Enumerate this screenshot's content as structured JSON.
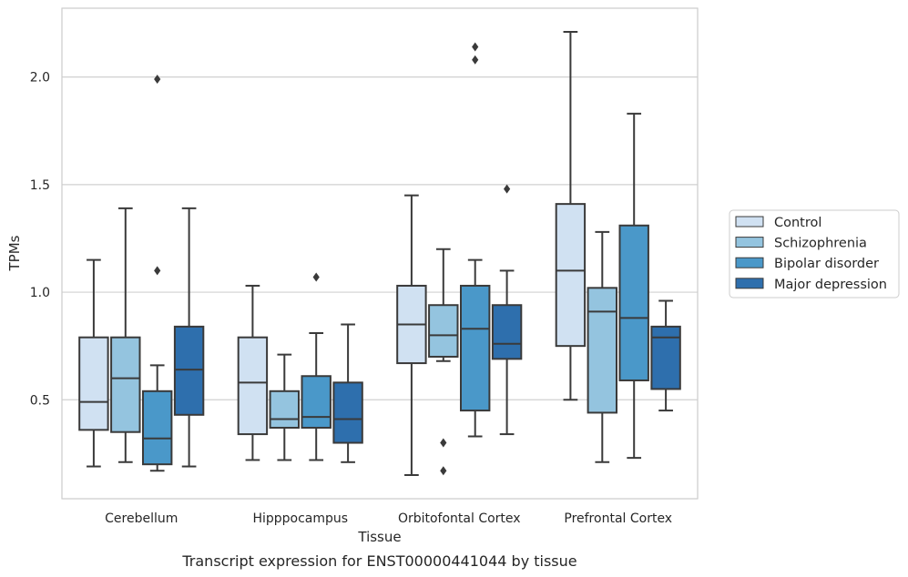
{
  "chart_data": {
    "type": "box",
    "caption": "Transcript expression for ENST00000441044 by tissue",
    "xlabel": "Tissue",
    "ylabel": "TPMs",
    "ylim": [
      0.04,
      2.32
    ],
    "yticks": [
      0.5,
      1.0,
      1.5,
      2.0
    ],
    "ytick_labels": [
      "0.5",
      "1.0",
      "1.5",
      "2.0"
    ],
    "grid": "horizontal",
    "legend_position": "right",
    "categories": [
      "Cerebellum",
      "Hipppocampus",
      "Orbitofontal Cortex",
      "Prefrontal Cortex"
    ],
    "series": [
      {
        "name": "Control",
        "color": "#d0e1f2",
        "boxes": [
          {
            "whislo": 0.19,
            "q1": 0.36,
            "med": 0.49,
            "q3": 0.79,
            "whishi": 1.15,
            "fliers": []
          },
          {
            "whislo": 0.22,
            "q1": 0.34,
            "med": 0.58,
            "q3": 0.79,
            "whishi": 1.03,
            "fliers": []
          },
          {
            "whislo": 0.15,
            "q1": 0.67,
            "med": 0.85,
            "q3": 1.03,
            "whishi": 1.45,
            "fliers": []
          },
          {
            "whislo": 0.5,
            "q1": 0.75,
            "med": 1.1,
            "q3": 1.41,
            "whishi": 2.21,
            "fliers": []
          }
        ]
      },
      {
        "name": "Schizophrenia",
        "color": "#94c4df",
        "boxes": [
          {
            "whislo": 0.21,
            "q1": 0.35,
            "med": 0.6,
            "q3": 0.79,
            "whishi": 1.39,
            "fliers": []
          },
          {
            "whislo": 0.22,
            "q1": 0.37,
            "med": 0.41,
            "q3": 0.54,
            "whishi": 0.71,
            "fliers": []
          },
          {
            "whislo": 0.68,
            "q1": 0.7,
            "med": 0.8,
            "q3": 0.94,
            "whishi": 1.2,
            "fliers": [
              0.3,
              0.17
            ]
          },
          {
            "whislo": 0.21,
            "q1": 0.44,
            "med": 0.91,
            "q3": 1.02,
            "whishi": 1.28,
            "fliers": []
          }
        ]
      },
      {
        "name": "Bipolar disorder",
        "color": "#4a98c9",
        "boxes": [
          {
            "whislo": 0.17,
            "q1": 0.2,
            "med": 0.32,
            "q3": 0.54,
            "whishi": 0.66,
            "fliers": [
              1.99,
              1.1
            ]
          },
          {
            "whislo": 0.22,
            "q1": 0.37,
            "med": 0.42,
            "q3": 0.61,
            "whishi": 0.81,
            "fliers": [
              1.07
            ]
          },
          {
            "whislo": 0.33,
            "q1": 0.45,
            "med": 0.83,
            "q3": 1.03,
            "whishi": 1.15,
            "fliers": [
              2.14,
              2.08
            ]
          },
          {
            "whislo": 0.23,
            "q1": 0.59,
            "med": 0.88,
            "q3": 1.31,
            "whishi": 1.83,
            "fliers": []
          }
        ]
      },
      {
        "name": "Major depression",
        "color": "#2e6fad",
        "boxes": [
          {
            "whislo": 0.19,
            "q1": 0.43,
            "med": 0.64,
            "q3": 0.84,
            "whishi": 1.39,
            "fliers": []
          },
          {
            "whislo": 0.21,
            "q1": 0.3,
            "med": 0.41,
            "q3": 0.58,
            "whishi": 0.85,
            "fliers": []
          },
          {
            "whislo": 0.34,
            "q1": 0.69,
            "med": 0.76,
            "q3": 0.94,
            "whishi": 1.1,
            "fliers": [
              1.48
            ]
          },
          {
            "whislo": 0.45,
            "q1": 0.55,
            "med": 0.79,
            "q3": 0.84,
            "whishi": 0.96,
            "fliers": []
          }
        ]
      }
    ],
    "colors": {
      "edge": "#3a3a3a",
      "grid": "#d0d0d0",
      "frame": "#cccccc"
    }
  }
}
